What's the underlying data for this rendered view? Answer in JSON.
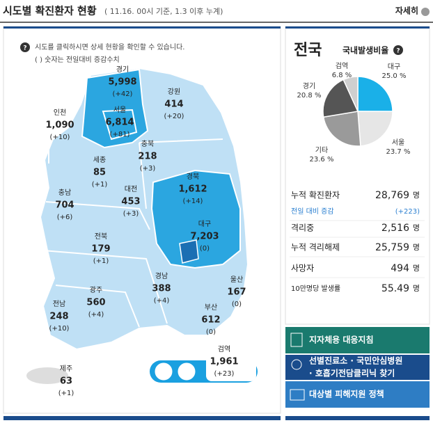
{
  "header": {
    "title": "시도별 확진환자 현황",
    "subtitle": "( 11.16. 00시 기준, 1.3 이후 누계)",
    "more": "자세히"
  },
  "notice": {
    "click": "시도를 클릭하시면 상세 현황을 확인할 수 있습니다.",
    "paren": "( ) 숫자는 전일대비 증감수치"
  },
  "regions": [
    {
      "name": "경기",
      "count": "5,998",
      "change": "(+42)"
    },
    {
      "name": "강원",
      "count": "414",
      "change": "(+20)"
    },
    {
      "name": "인천",
      "count": "1,090",
      "change": "(+10)"
    },
    {
      "name": "서울",
      "count": "6,814",
      "change": "(+81)"
    },
    {
      "name": "충북",
      "count": "218",
      "change": "(+3)"
    },
    {
      "name": "세종",
      "count": "85",
      "change": "(+1)"
    },
    {
      "name": "대전",
      "count": "453",
      "change": "(+3)"
    },
    {
      "name": "경북",
      "count": "1,612",
      "change": "(+14)"
    },
    {
      "name": "충남",
      "count": "704",
      "change": "(+6)"
    },
    {
      "name": "대구",
      "count": "7,203",
      "change": "(0)"
    },
    {
      "name": "전북",
      "count": "179",
      "change": "(+1)"
    },
    {
      "name": "경남",
      "count": "388",
      "change": "(+4)"
    },
    {
      "name": "울산",
      "count": "167",
      "change": "(0)"
    },
    {
      "name": "광주",
      "count": "560",
      "change": "(+4)"
    },
    {
      "name": "부산",
      "count": "612",
      "change": "(0)"
    },
    {
      "name": "전남",
      "count": "248",
      "change": "(+10)"
    },
    {
      "name": "제주",
      "count": "63",
      "change": "(+1)"
    },
    {
      "name": "검역",
      "count": "1,961",
      "change": "(+23)"
    }
  ],
  "national": {
    "title": "전국",
    "pie": {
      "title": "국내발생비율",
      "slices": [
        {
          "name": "대구",
          "value": 25.0,
          "label": "25.0 %",
          "color": "#1ab0e8"
        },
        {
          "name": "서울",
          "value": 23.7,
          "label": "23.7 %",
          "color": "#e6e6e6"
        },
        {
          "name": "기타",
          "value": 23.6,
          "label": "23.6 %",
          "color": "#9a9a9a"
        },
        {
          "name": "경기",
          "value": 20.8,
          "label": "20.8 %",
          "color": "#555555"
        },
        {
          "name": "검역",
          "value": 6.8,
          "label": "6.8 %",
          "color": "#cfcfcf"
        }
      ]
    },
    "stats": [
      {
        "label": "누적 확진환자",
        "value": "28,769",
        "unit": "명"
      },
      {
        "label": "전일 대비 증감",
        "value": "(+223)"
      },
      {
        "label": "격리중",
        "value": "2,516",
        "unit": "명"
      },
      {
        "label": "누적 격리해제",
        "value": "25,759",
        "unit": "명"
      },
      {
        "label": "사망자",
        "value": "494",
        "unit": "명"
      },
      {
        "label": "10만명당 발생률",
        "value": "55.49",
        "unit": "명"
      }
    ]
  },
  "links": [
    {
      "text": "지자체용 대응지침"
    },
    {
      "text": "선별진료소 · 국민안심병원",
      "text2": "· 호흡기전담클리닉 찾기"
    },
    {
      "text": "대상별 피해지원 정책"
    }
  ]
}
